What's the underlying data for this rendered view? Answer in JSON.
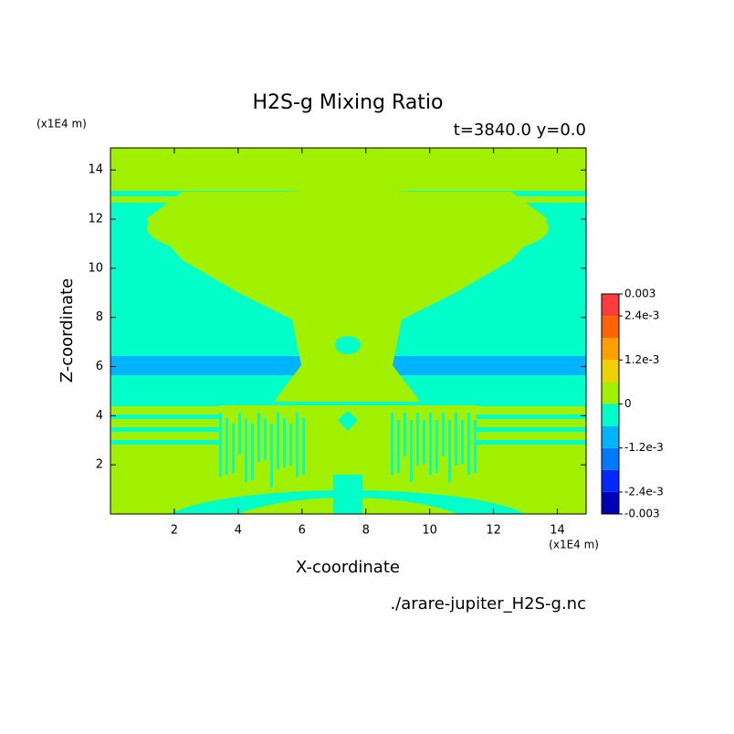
{
  "chart_data": {
    "type": "contour",
    "title": "H2S-g Mixing Ratio",
    "subtitle": "t=3840.0 y=0.0",
    "x_label": "X-coordinate",
    "y_label": "Z-coordinate",
    "x_unit": "(x1E4 m)",
    "y_unit": "(x1E4 m)",
    "source": "./arare-jupiter_H2S-g.nc",
    "xlim": [
      0,
      14.9
    ],
    "ylim": [
      0,
      14.9
    ],
    "xticks": [
      2,
      4,
      6,
      8,
      10,
      12,
      14
    ],
    "yticks": [
      2,
      4,
      6,
      8,
      10,
      12,
      14
    ],
    "colorbar": {
      "levels": [
        -0.003,
        -0.0024,
        -0.0018,
        -0.0012,
        -0.0006,
        0,
        0.0006,
        0.0012,
        0.0018,
        0.0024,
        0.003
      ],
      "colors": [
        "#0000b4",
        "#0028ff",
        "#0078ff",
        "#00b4ff",
        "#00ffc8",
        "#a0f000",
        "#f0d000",
        "#ffa000",
        "#ff6400",
        "#ff3c3c"
      ],
      "ticks": [
        0.003,
        {
          "value": 0.0024,
          "label": "2.4e-3"
        },
        {
          "value": 0.0012,
          "label": "1.2e-3"
        },
        0,
        {
          "value": -0.0012,
          "label": "-1.2e-3"
        },
        {
          "value": -0.0024,
          "label": "-2.4e-3"
        },
        -0.003
      ]
    }
  }
}
